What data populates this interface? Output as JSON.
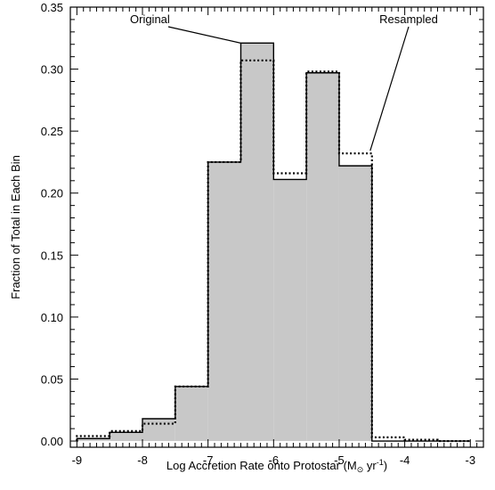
{
  "chart_data": {
    "type": "bar",
    "xlabel_parts": {
      "main": "Log Accretion Rate onto Protostar (M",
      "symbol": "⊙",
      "unit": " yr",
      "exp": "-1",
      "close": ")"
    },
    "ylabel": "Fraction of Total in Each Bin",
    "xlim": [
      -9.1,
      -2.8
    ],
    "ylim": [
      -0.005,
      0.35
    ],
    "xticks": [
      -9,
      -8,
      -7,
      -6,
      -5,
      -4,
      -3
    ],
    "xtick_labels": [
      "-9",
      "-8",
      "-7",
      "-6",
      "-5",
      "-4",
      "-3"
    ],
    "yticks": [
      0.0,
      0.05,
      0.1,
      0.15,
      0.2,
      0.25,
      0.3,
      0.35
    ],
    "ytick_labels": [
      "0.00",
      "0.05",
      "0.10",
      "0.15",
      "0.20",
      "0.25",
      "0.30",
      "0.35"
    ],
    "bin_edges": [
      -9.0,
      -8.5,
      -8.0,
      -7.5,
      -7.0,
      -6.5,
      -6.0,
      -5.5,
      -5.0,
      -4.5,
      -4.0,
      -3.5,
      -3.0
    ],
    "series": [
      {
        "name": "Original",
        "style": "solid-filled",
        "fill": "#c8c8c8",
        "values": [
          0.002,
          0.007,
          0.018,
          0.044,
          0.225,
          0.321,
          0.211,
          0.297,
          0.222,
          0.0,
          0.0,
          0.0
        ]
      },
      {
        "name": "Resampled",
        "style": "dotted",
        "values": [
          0.004,
          0.008,
          0.014,
          0.044,
          0.225,
          0.307,
          0.216,
          0.298,
          0.232,
          0.003,
          0.001,
          0.0
        ]
      }
    ],
    "annotations": [
      {
        "text": "Original",
        "target_x": -6.5,
        "target_y": 0.321
      },
      {
        "text": "Resampled",
        "target_x": -4.5,
        "target_y": 0.232
      }
    ]
  }
}
